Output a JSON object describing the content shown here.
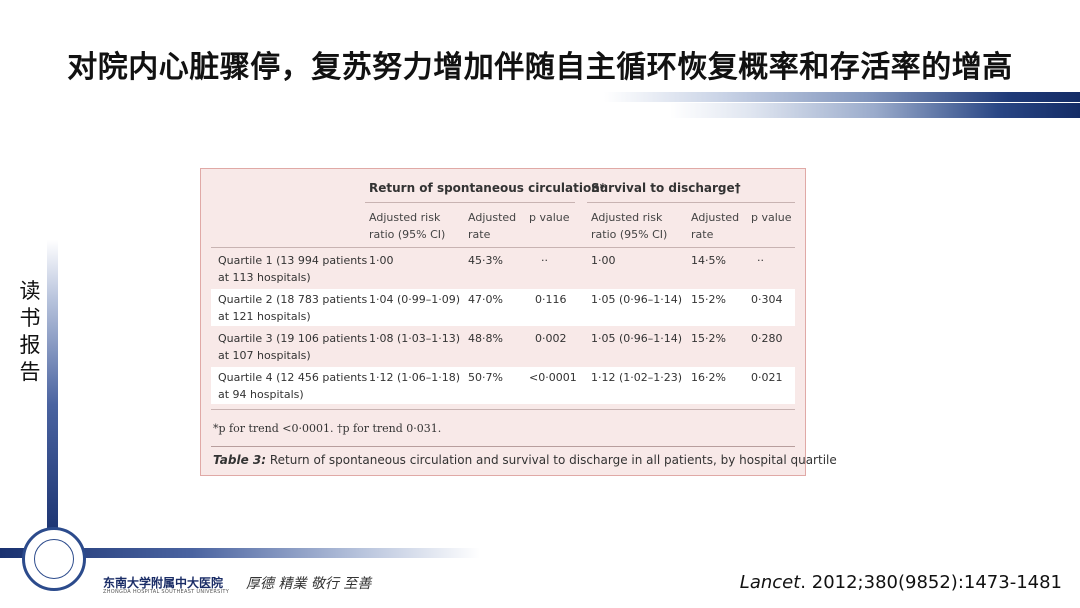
{
  "slide": {
    "title": "对院内心脏骤停，复苏努力增加伴随自主循环恢复概率和存活率的增高",
    "side_label": [
      "读",
      "书",
      "报",
      "告"
    ]
  },
  "table": {
    "group1_header": "Return of spontaneous circulation*",
    "group2_header": "Survival to discharge†",
    "subheaders": [
      "Adjusted risk\nratio (95% CI)",
      "Adjusted\nrate",
      "p value",
      "Adjusted risk\nratio (95% CI)",
      "Adjusted\nrate",
      "p value"
    ],
    "rows": [
      {
        "label1": "Quartile 1 (13 994 patients",
        "label2": "at 113 hospitals)",
        "cells": [
          "1·00",
          "45·3%",
          "··",
          "1·00",
          "14·5%",
          "··"
        ]
      },
      {
        "label1": "Quartile 2 (18 783 patients",
        "label2": "at 121 hospitals)",
        "cells": [
          "1·04 (0·99–1·09)",
          "47·0%",
          "0·116",
          "1·05 (0·96–1·14)",
          "15·2%",
          "0·304"
        ]
      },
      {
        "label1": "Quartile 3 (19 106 patients",
        "label2": "at 107 hospitals)",
        "cells": [
          "1·08 (1·03–1·13)",
          "48·8%",
          "0·002",
          "1·05 (0·96–1·14)",
          "15·2%",
          "0·280"
        ]
      },
      {
        "label1": "Quartile 4 (12 456 patients",
        "label2": "at 94 hospitals)",
        "cells": [
          "1·12 (1·06–1·18)",
          "50·7%",
          "<0·0001",
          "1·12 (1·02–1·23)",
          "16·2%",
          "0·021"
        ]
      }
    ],
    "footnote": "*p for trend <0·0001. †p for trend 0·031.",
    "caption_label": "Table 3:",
    "caption_text": " Return of spontaneous circulation and survival to discharge in all patients, by hospital quartile"
  },
  "footer": {
    "org_name": "东南大学附属中大医院",
    "org_sub": "ZHONGDA HOSPITAL SOUTHEAST UNIVERSITY",
    "motto": "厚德  精業  敬行  至善",
    "citation_journal": "Lancet",
    "citation_rest": ". 2012;380(9852):1473-1481"
  }
}
